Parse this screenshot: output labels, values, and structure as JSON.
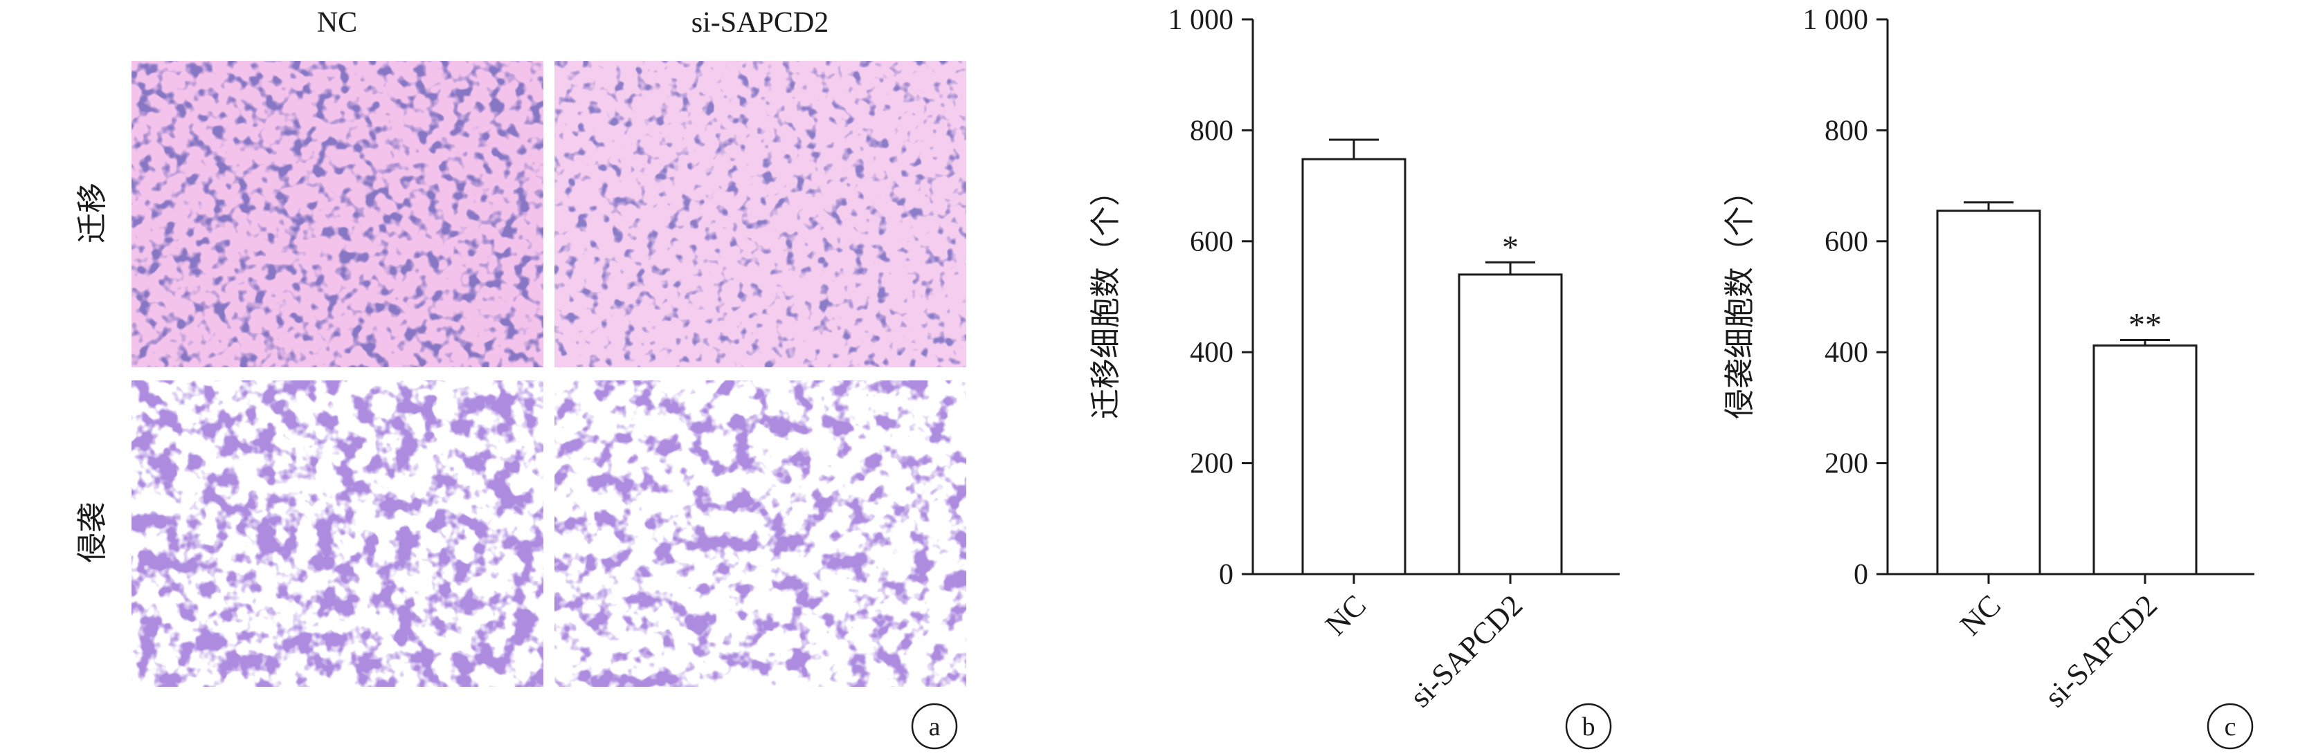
{
  "panel_a": {
    "columns": [
      "NC",
      "si-SAPCD2"
    ],
    "rows": [
      "迁移",
      "侵袭"
    ],
    "label": "a",
    "stain_colors": {
      "migration_background": "#f3c3ec",
      "migration_cells": "#3c2d8c",
      "invasion_background": "#ffffff",
      "invasion_cells": "#6a3fb8"
    }
  },
  "chart_data": [
    {
      "type": "bar",
      "panel_label": "b",
      "categories": [
        "NC",
        "si-SAPCD2"
      ],
      "values": [
        748,
        540
      ],
      "error": [
        35,
        22
      ],
      "significance": [
        "",
        "*"
      ],
      "ylabel": "迁移细胞数（个）",
      "ylim": [
        0,
        1000
      ],
      "yticks": [
        0,
        200,
        400,
        600,
        800,
        1000
      ],
      "ytick_labels": [
        "0",
        "200",
        "400",
        "600",
        "800",
        "1 000"
      ],
      "grid": false
    },
    {
      "type": "bar",
      "panel_label": "c",
      "categories": [
        "NC",
        "si-SAPCD2"
      ],
      "values": [
        655,
        412
      ],
      "error": [
        15,
        10
      ],
      "significance": [
        "",
        "**"
      ],
      "ylabel": "侵袭细胞数（个）",
      "ylim": [
        0,
        1000
      ],
      "yticks": [
        0,
        200,
        400,
        600,
        800,
        1000
      ],
      "ytick_labels": [
        "0",
        "200",
        "400",
        "600",
        "800",
        "1 000"
      ],
      "grid": false
    }
  ]
}
